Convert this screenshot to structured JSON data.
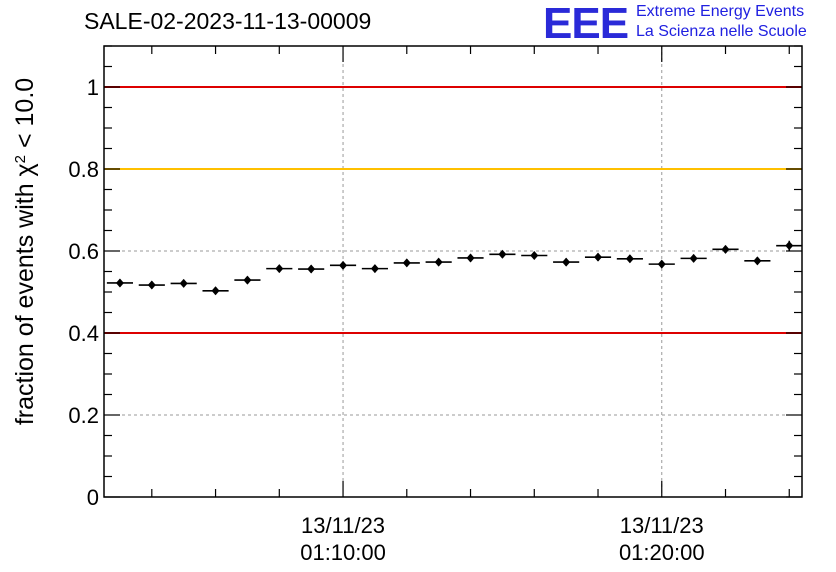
{
  "header": {
    "title": "SALE-02-2023-11-13-00009",
    "logo_text": "EEE",
    "logo_line1": "Extreme Energy Events",
    "logo_line2": "La Scienza nelle Scuole"
  },
  "colors": {
    "limit_red": "#dd0000",
    "limit_yellow": "#ffc000",
    "points": "#000000",
    "grid": "#999999",
    "logo": "#2a2ad8"
  },
  "chart_data": {
    "type": "scatter",
    "title": "SALE-02-2023-11-13-00009",
    "ylabel_prefix": "fraction of events with ",
    "ylabel_symbol": "χ",
    "ylabel_exp": "2",
    "ylabel_suffix": " < 10.0",
    "xlabel": "",
    "x_unit": "minutes",
    "xlim": [
      1.8,
      23.7
    ],
    "ylim": [
      0,
      1.1
    ],
    "y_ticks": [
      0,
      0.2,
      0.4,
      0.6,
      0.8,
      1
    ],
    "y_tick_labels": [
      "0",
      "0.2",
      "0.4",
      "0.6",
      "0.8",
      "1"
    ],
    "x_ticks": [
      {
        "x": 9.3,
        "date": "13/11/23",
        "time": "01:10:00"
      },
      {
        "x": 19.3,
        "date": "13/11/23",
        "time": "01:20:00"
      }
    ],
    "grid": true,
    "reference_lines": [
      {
        "y": 1.0,
        "color": "#dd0000"
      },
      {
        "y": 0.8,
        "color": "#ffc000"
      },
      {
        "y": 0.4,
        "color": "#dd0000"
      }
    ],
    "bin_width": 1.0,
    "points": {
      "x": [
        2.3,
        3.3,
        4.3,
        5.3,
        6.3,
        7.3,
        8.3,
        9.3,
        10.3,
        11.3,
        12.3,
        13.3,
        14.3,
        15.3,
        16.3,
        17.3,
        18.3,
        19.3,
        20.3,
        21.3,
        22.3,
        23.3
      ],
      "y": [
        0.522,
        0.517,
        0.521,
        0.503,
        0.529,
        0.557,
        0.556,
        0.565,
        0.557,
        0.571,
        0.573,
        0.583,
        0.592,
        0.589,
        0.573,
        0.585,
        0.581,
        0.568,
        0.582,
        0.604,
        0.576,
        0.613
      ],
      "err": [
        0.009,
        0.009,
        0.009,
        0.009,
        0.009,
        0.009,
        0.009,
        0.009,
        0.009,
        0.009,
        0.009,
        0.009,
        0.009,
        0.009,
        0.009,
        0.009,
        0.009,
        0.009,
        0.009,
        0.009,
        0.009,
        0.012
      ]
    }
  }
}
